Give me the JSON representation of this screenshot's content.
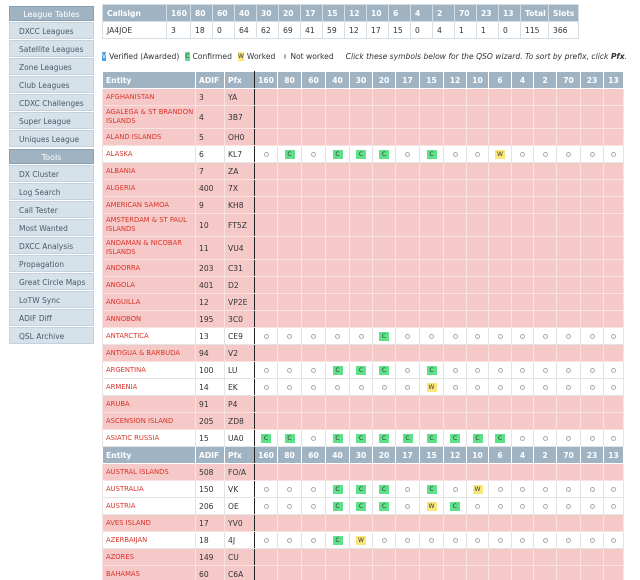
{
  "sidebar": {
    "league_header": "League Tables",
    "league_items": [
      "DXCC Leagues",
      "Satellite Leagues",
      "Zone Leagues",
      "Club Leagues",
      "CDXC Challenges",
      "Super League",
      "Uniques League"
    ],
    "tools_header": "Tools",
    "tool_items": [
      "DX Cluster",
      "Log Search",
      "Call Tester",
      "Most Wanted",
      "DXCC Analysis",
      "Propagation",
      "Great Circle Maps",
      "LoTW Sync",
      "ADIF Diff",
      "QSL Archive"
    ]
  },
  "summary": {
    "headers": [
      "Callsign",
      "160",
      "80",
      "60",
      "40",
      "30",
      "20",
      "17",
      "15",
      "12",
      "10",
      "6",
      "4",
      "2",
      "70",
      "23",
      "13",
      "Total",
      "Slots"
    ],
    "values": [
      "JA4JOE",
      "3",
      "18",
      "0",
      "64",
      "62",
      "69",
      "41",
      "59",
      "12",
      "17",
      "15",
      "0",
      "4",
      "1",
      "1",
      "0",
      "115",
      "366"
    ]
  },
  "legend": {
    "verified_symbol": "V",
    "verified_label": "Verified (Awarded)",
    "confirmed_symbol": "C",
    "confirmed_label": "Confirmed",
    "worked_symbol": "W",
    "worked_label": "Worked",
    "not_worked_label": "Not worked",
    "hint_text": "Click these symbols below for the QSO wizard. To sort by prefix, click",
    "hint_link": "Pfx",
    "hint_end": "."
  },
  "table": {
    "headers": [
      "Entity",
      "ADIF",
      "Pfx",
      "160",
      "80",
      "60",
      "40",
      "30",
      "20",
      "17",
      "15",
      "12",
      "10",
      "6",
      "4",
      "2",
      "70",
      "23",
      "13"
    ],
    "rows": [
      {
        "entity": "AFGHANISTAN",
        "adif": "3",
        "pfx": "YA",
        "hl": false,
        "tall": false,
        "marks": []
      },
      {
        "entity": "AGALEGA & ST BRANDON ISLANDS",
        "adif": "4",
        "pfx": "3B7",
        "hl": false,
        "tall": true,
        "marks": []
      },
      {
        "entity": "ALAND ISLANDS",
        "adif": "5",
        "pfx": "OH0",
        "hl": false,
        "tall": false,
        "marks": []
      },
      {
        "entity": "ALASKA",
        "adif": "6",
        "pfx": "KL7",
        "hl": true,
        "tall": false,
        "marks": [
          "o",
          "C",
          "o",
          "C",
          "C",
          "C",
          "o",
          "C",
          "o",
          "o",
          "W",
          "o",
          "o",
          "o",
          "o",
          "o"
        ]
      },
      {
        "entity": "ALBANIA",
        "adif": "7",
        "pfx": "ZA",
        "hl": false,
        "tall": false,
        "marks": []
      },
      {
        "entity": "ALGERIA",
        "adif": "400",
        "pfx": "7X",
        "hl": false,
        "tall": false,
        "marks": []
      },
      {
        "entity": "AMERICAN SAMOA",
        "adif": "9",
        "pfx": "KH8",
        "hl": false,
        "tall": false,
        "marks": []
      },
      {
        "entity": "AMSTERDAM & ST PAUL ISLANDS",
        "adif": "10",
        "pfx": "FT5Z",
        "hl": false,
        "tall": true,
        "marks": []
      },
      {
        "entity": "ANDAMAN & NICOBAR ISLANDS",
        "adif": "11",
        "pfx": "VU4",
        "hl": false,
        "tall": true,
        "marks": []
      },
      {
        "entity": "ANDORRA",
        "adif": "203",
        "pfx": "C31",
        "hl": false,
        "tall": false,
        "marks": []
      },
      {
        "entity": "ANGOLA",
        "adif": "401",
        "pfx": "D2",
        "hl": false,
        "tall": false,
        "marks": []
      },
      {
        "entity": "ANGUILLA",
        "adif": "12",
        "pfx": "VP2E",
        "hl": false,
        "tall": false,
        "marks": []
      },
      {
        "entity": "ANNOBON",
        "adif": "195",
        "pfx": "3C0",
        "hl": false,
        "tall": false,
        "marks": []
      },
      {
        "entity": "ANTARCTICA",
        "adif": "13",
        "pfx": "CE9",
        "hl": true,
        "tall": false,
        "marks": [
          "o",
          "o",
          "o",
          "o",
          "o",
          "C",
          "o",
          "o",
          "o",
          "o",
          "o",
          "o",
          "o",
          "o",
          "o",
          "o"
        ]
      },
      {
        "entity": "ANTIGUA & BARBUDA",
        "adif": "94",
        "pfx": "V2",
        "hl": false,
        "tall": false,
        "marks": []
      },
      {
        "entity": "ARGENTINA",
        "adif": "100",
        "pfx": "LU",
        "hl": true,
        "tall": false,
        "marks": [
          "o",
          "o",
          "o",
          "C",
          "C",
          "C",
          "o",
          "C",
          "o",
          "o",
          "o",
          "o",
          "o",
          "o",
          "o",
          "o"
        ]
      },
      {
        "entity": "ARMENIA",
        "adif": "14",
        "pfx": "EK",
        "hl": true,
        "tall": false,
        "marks": [
          "o",
          "o",
          "o",
          "o",
          "o",
          "o",
          "o",
          "W",
          "o",
          "o",
          "o",
          "o",
          "o",
          "o",
          "o",
          "o"
        ]
      },
      {
        "entity": "ARUBA",
        "adif": "91",
        "pfx": "P4",
        "hl": false,
        "tall": false,
        "marks": []
      },
      {
        "entity": "ASCENSION ISLAND",
        "adif": "205",
        "pfx": "ZD8",
        "hl": false,
        "tall": false,
        "marks": []
      },
      {
        "entity": "ASIATIC RUSSIA",
        "adif": "15",
        "pfx": "UA0",
        "hl": true,
        "tall": false,
        "marks": [
          "C",
          "C",
          "o",
          "C",
          "C",
          "C",
          "C",
          "C",
          "C",
          "C",
          "C",
          "o",
          "o",
          "o",
          "o",
          "o"
        ]
      },
      {
        "header": true
      },
      {
        "entity": "AUSTRAL ISLANDS",
        "adif": "508",
        "pfx": "FO/A",
        "hl": false,
        "tall": false,
        "marks": []
      },
      {
        "entity": "AUSTRALIA",
        "adif": "150",
        "pfx": "VK",
        "hl": true,
        "tall": false,
        "marks": [
          "o",
          "o",
          "o",
          "C",
          "C",
          "C",
          "o",
          "C",
          "o",
          "W",
          "o",
          "o",
          "o",
          "o",
          "o",
          "o"
        ]
      },
      {
        "entity": "AUSTRIA",
        "adif": "206",
        "pfx": "OE",
        "hl": true,
        "tall": false,
        "marks": [
          "o",
          "o",
          "o",
          "C",
          "C",
          "C",
          "o",
          "W",
          "C",
          "o",
          "o",
          "o",
          "o",
          "o",
          "o",
          "o"
        ]
      },
      {
        "entity": "AVES ISLAND",
        "adif": "17",
        "pfx": "YV0",
        "hl": false,
        "tall": false,
        "marks": []
      },
      {
        "entity": "AZERBAIJAN",
        "adif": "18",
        "pfx": "4J",
        "hl": true,
        "tall": false,
        "marks": [
          "o",
          "o",
          "o",
          "C",
          "W",
          "o",
          "o",
          "o",
          "o",
          "o",
          "o",
          "o",
          "o",
          "o",
          "o",
          "o"
        ]
      },
      {
        "entity": "AZORES",
        "adif": "149",
        "pfx": "CU",
        "hl": false,
        "tall": false,
        "marks": []
      },
      {
        "entity": "BAHAMAS",
        "adif": "60",
        "pfx": "C6A",
        "hl": false,
        "tall": false,
        "marks": []
      }
    ]
  },
  "colors": {
    "header_bg": "#9fb3c3",
    "unworked_row_bg": "#f6c9c9",
    "entity_text": "#d9342a",
    "confirmed": "#5fe08a",
    "worked": "#fbe67a",
    "verified": "#4da3e8"
  }
}
